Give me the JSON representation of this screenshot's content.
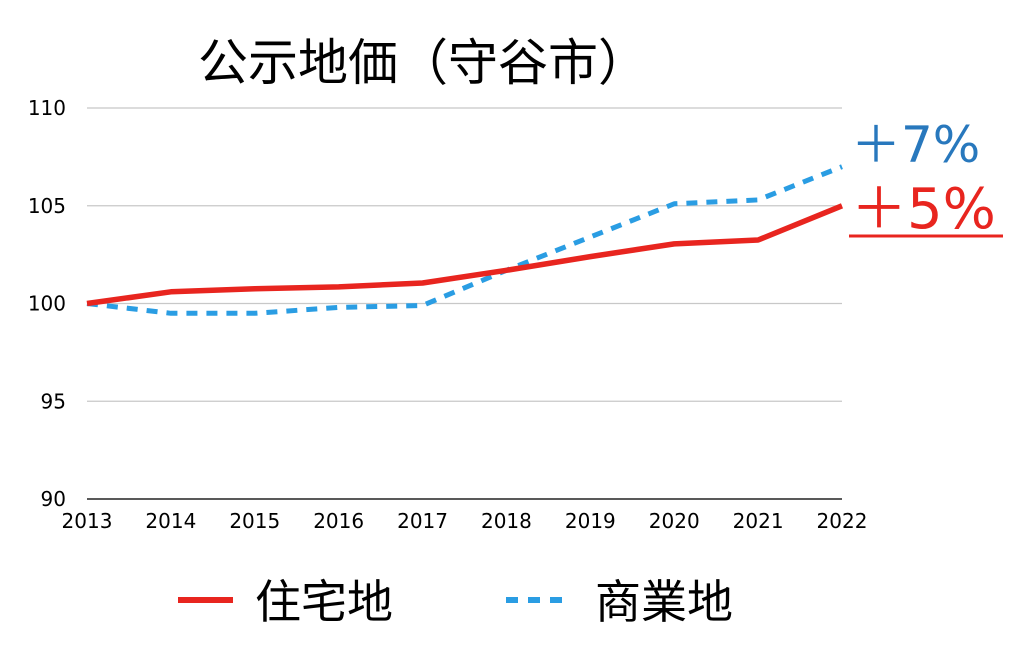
{
  "chart_data": {
    "type": "line",
    "title": "公示地価（守谷市）",
    "x": [
      "2013",
      "2014",
      "2015",
      "2016",
      "2017",
      "2018",
      "2019",
      "2020",
      "2021",
      "2022"
    ],
    "ylim": [
      90,
      110
    ],
    "yticks": [
      "90",
      "95",
      "100",
      "105",
      "110"
    ],
    "grid": true,
    "legend_position": "bottom",
    "series": [
      {
        "name": "住宅地",
        "values": [
          100,
          100.6,
          100.75,
          100.85,
          101.05,
          101.7,
          102.4,
          103.05,
          103.25,
          105
        ],
        "color": "#e8251f",
        "style": "solid",
        "end_label": "＋5%"
      },
      {
        "name": "商業地",
        "values": [
          100,
          99.5,
          99.5,
          99.8,
          99.9,
          101.7,
          103.4,
          105.1,
          105.3,
          107
        ],
        "color": "#2a9de3",
        "style": "dashed",
        "end_label": "＋7%",
        "end_label_color": "#2878bd"
      }
    ]
  }
}
